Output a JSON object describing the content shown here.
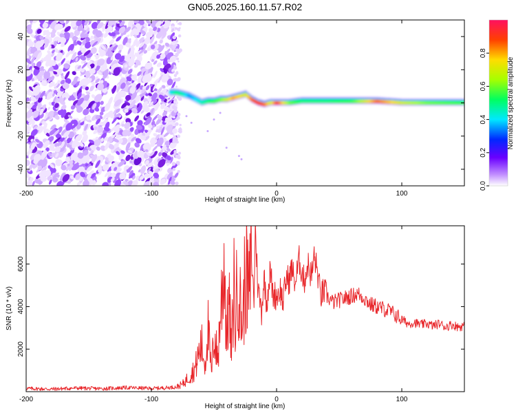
{
  "chart_data": [
    {
      "type": "heatmap",
      "title": "GN05.2025.160.11.57.R02",
      "xlabel": "Height of straight line (km)",
      "ylabel": "Frequency (Hz)",
      "xlim": [
        -200,
        150
      ],
      "ylim": [
        -50,
        50
      ],
      "x_ticks": [
        "-200",
        "-100",
        "0",
        "100"
      ],
      "y_ticks": [
        "-40",
        "-20",
        "0",
        "20",
        "40"
      ],
      "colorbar": {
        "label": "Normalized spectral amplitude",
        "range": [
          0,
          1
        ],
        "ticks": [
          "0.0",
          "0.2",
          "0.4",
          "0.6",
          "0.8"
        ],
        "colormap": "rainbow (white → purple → blue → cyan → green → yellow → red)"
      },
      "noise_region_x": [
        -200,
        -80
      ],
      "ridge": {
        "x": [
          -85,
          -80,
          -75,
          -70,
          -65,
          -60,
          -55,
          -50,
          -45,
          -40,
          -35,
          -30,
          -25,
          -20,
          -15,
          -10,
          -5,
          0,
          10,
          20,
          40,
          60,
          80,
          100,
          120,
          150
        ],
        "y": [
          6,
          6,
          5,
          4,
          2,
          0,
          1,
          1,
          2,
          2,
          3,
          4,
          5,
          2,
          0,
          -1,
          0,
          0,
          0,
          1,
          1,
          1,
          1,
          0,
          0,
          0
        ],
        "amplitude": [
          0.4,
          0.5,
          0.45,
          0.35,
          0.4,
          0.45,
          0.5,
          0.55,
          0.6,
          0.7,
          0.8,
          0.75,
          0.7,
          0.85,
          0.9,
          0.85,
          0.7,
          0.9,
          0.6,
          0.5,
          0.5,
          0.55,
          0.85,
          0.7,
          0.6,
          0.55
        ]
      },
      "colors": {
        "background": "#ffffff",
        "noise": "#7b1fe0"
      }
    },
    {
      "type": "line",
      "xlabel": "Height of straight line (km)",
      "ylabel": "SNR (10 * v/v)",
      "xlim": [
        -200,
        150
      ],
      "ylim": [
        0,
        7800
      ],
      "x_ticks": [
        "-200",
        "-100",
        "0",
        "100"
      ],
      "y_ticks": [
        "2000",
        "4000",
        "6000"
      ],
      "series": [
        {
          "color": "#e8262a",
          "x": [
            -200,
            -180,
            -160,
            -140,
            -120,
            -100,
            -90,
            -80,
            -75,
            -70,
            -65,
            -62,
            -60,
            -57,
            -55,
            -52,
            -50,
            -47,
            -45,
            -43,
            -42,
            -40,
            -38,
            -36,
            -34,
            -33,
            -31,
            -29,
            -27,
            -25,
            -22,
            -20,
            -18,
            -17,
            -15,
            -12,
            -10,
            -8,
            -5,
            -3,
            0,
            3,
            5,
            8,
            10,
            12,
            15,
            18,
            20,
            22,
            25,
            28,
            30,
            33,
            35,
            38,
            40,
            45,
            50,
            55,
            60,
            65,
            70,
            75,
            80,
            85,
            90,
            95,
            100,
            105,
            110,
            115,
            120,
            125,
            130,
            135,
            140,
            145,
            150
          ],
          "y": [
            150,
            120,
            170,
            140,
            190,
            150,
            180,
            220,
            350,
            700,
            1100,
            1800,
            2200,
            1300,
            3200,
            800,
            2800,
            1500,
            3600,
            5000,
            6700,
            2600,
            4200,
            1800,
            5200,
            3000,
            5800,
            4000,
            3200,
            5800,
            4500,
            6200,
            4300,
            7800,
            5000,
            3800,
            5400,
            4200,
            5700,
            4600,
            4500,
            4800,
            4200,
            5400,
            5200,
            5800,
            5100,
            6200,
            5700,
            5200,
            6000,
            5400,
            6400,
            5500,
            4500,
            4700,
            4500,
            4200,
            4300,
            4400,
            4500,
            4600,
            4400,
            4100,
            4000,
            3900,
            3800,
            3600,
            3400,
            3200,
            3250,
            3150,
            3200,
            3100,
            3200,
            3050,
            3150,
            3050,
            3100
          ]
        }
      ]
    }
  ]
}
